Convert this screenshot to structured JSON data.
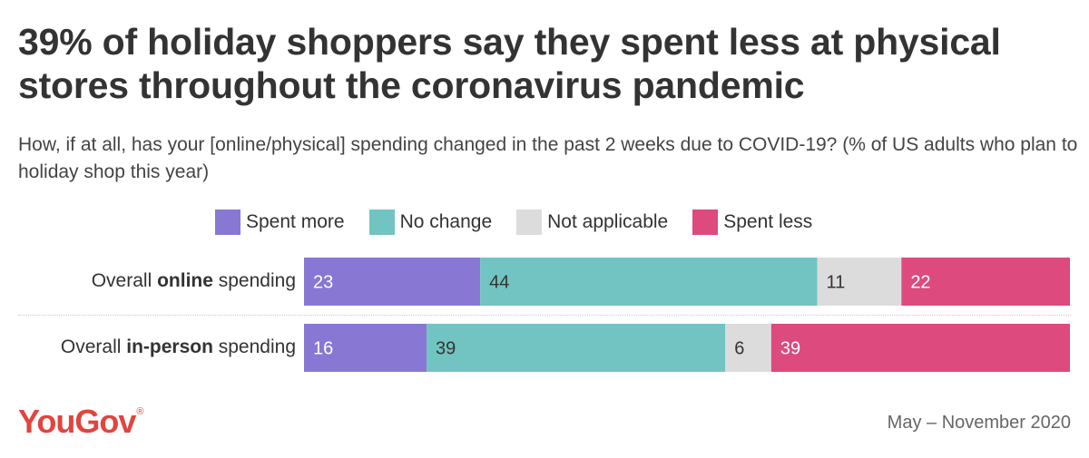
{
  "chart_data": {
    "type": "bar",
    "orientation": "horizontal",
    "stacked": true,
    "title": "39% of holiday shoppers say they spent less at physical stores throughout the coronavirus pandemic",
    "subtitle": "How, if at all, has your [online/physical] spending changed in the past 2 weeks due to COVID-19? (% of US adults who plan to holiday shop this year)",
    "xlim": [
      0,
      100
    ],
    "categories": [
      {
        "pre": "Overall ",
        "bold": "online",
        "post": " spending"
      },
      {
        "pre": "Overall ",
        "bold": "in-person",
        "post": " spending"
      }
    ],
    "series": [
      {
        "name": "Spent more",
        "color": "#8878d3",
        "label_color": "#ffffff",
        "values": [
          23,
          16
        ]
      },
      {
        "name": "No change",
        "color": "#72c4c2",
        "label_color": "#333333",
        "values": [
          44,
          39
        ]
      },
      {
        "name": "Not applicable",
        "color": "#dcdcdc",
        "label_color": "#333333",
        "values": [
          11,
          6
        ]
      },
      {
        "name": "Spent less",
        "color": "#dd4a7e",
        "label_color": "#ffffff",
        "values": [
          22,
          39
        ]
      }
    ],
    "legend": "top-center"
  },
  "footer": {
    "brand": "YouGov",
    "brand_mark": "®",
    "date_range": "May – November 2020"
  }
}
